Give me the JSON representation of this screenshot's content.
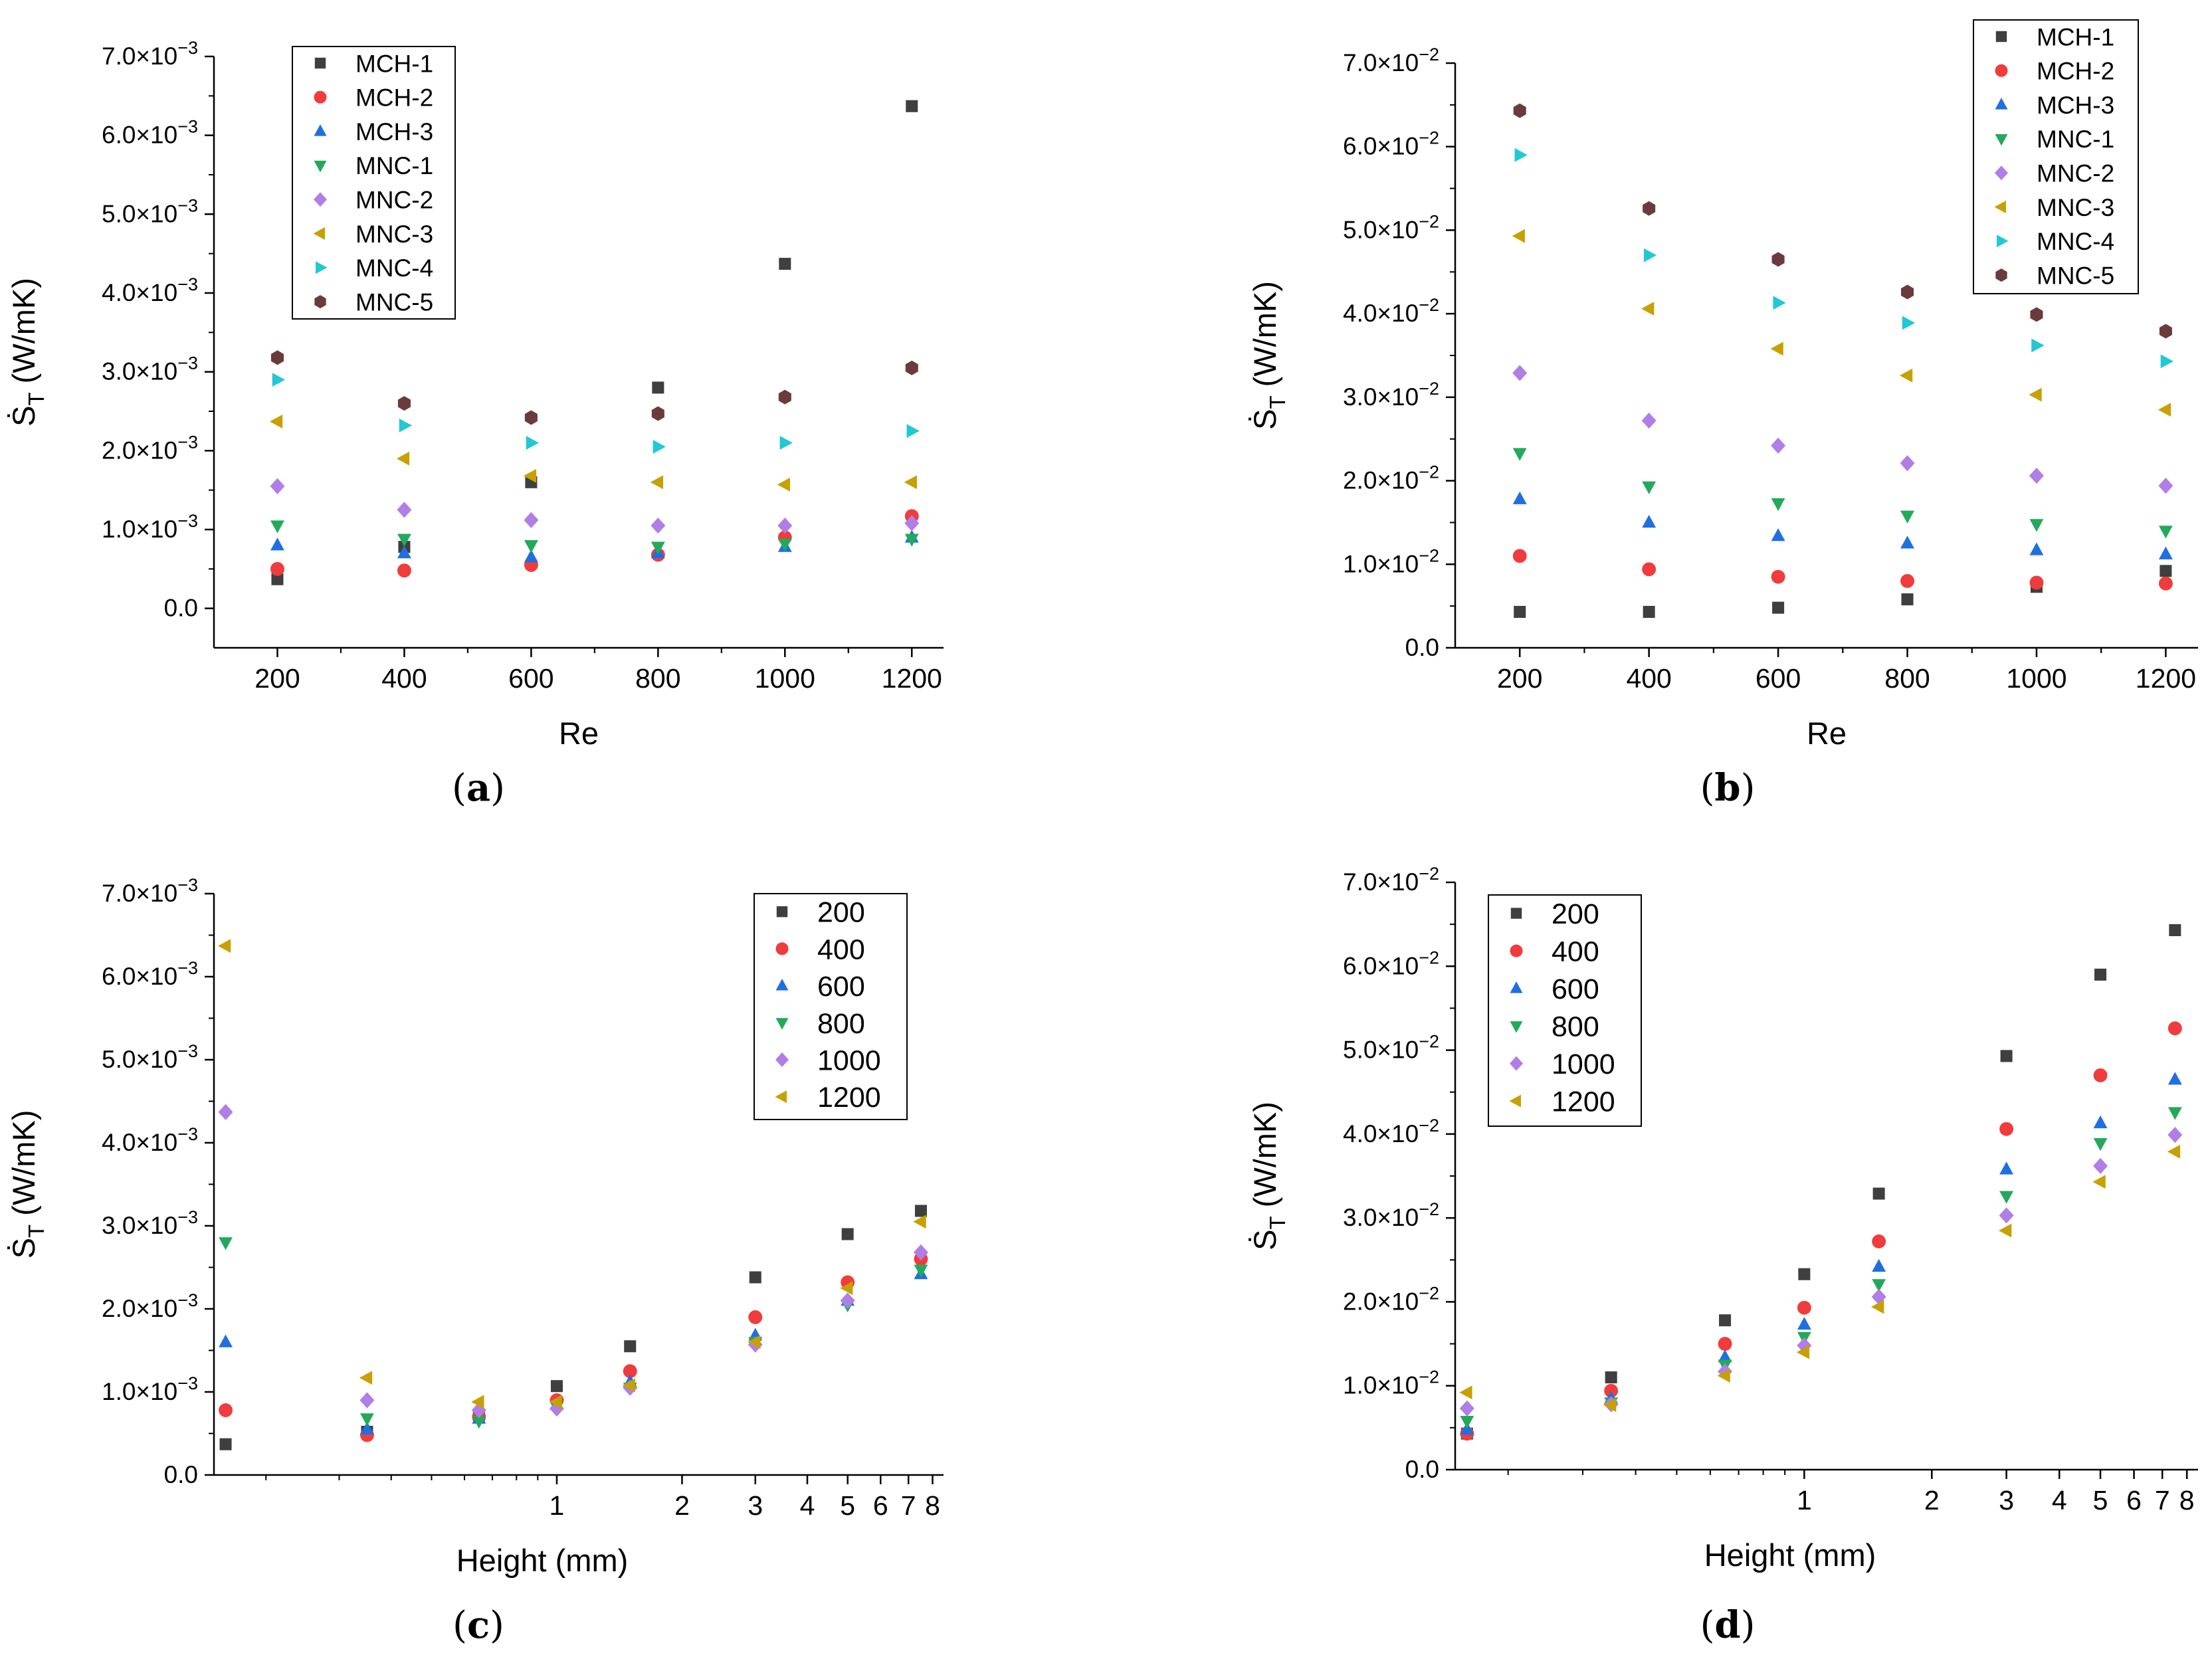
{
  "colors": {
    "MCH-1": "#3f3f3f",
    "MCH-2": "#f03c3c",
    "MCH-3": "#1f6fe0",
    "MNC-1": "#22aa5a",
    "MNC-2": "#b07ee6",
    "MNC-3": "#c8a000",
    "MNC-4": "#22c8d4",
    "MNC-5": "#6b3b3b",
    "200": "#3f3f3f",
    "400": "#f03c3c",
    "600": "#1f6fe0",
    "800": "#22aa5a",
    "1000": "#b07ee6",
    "1200": "#c8a000"
  },
  "chart_data": [
    {
      "id": "a",
      "caption": "(a)",
      "type": "scatter",
      "xlabel": "Re",
      "ylabel": "Ṡ",
      "ylabel_sub": "T",
      "ylabel_unit": "(W/mK)",
      "xscale": "linear",
      "xlim": [
        100,
        1250
      ],
      "ylim": [
        -0.0005,
        0.007
      ],
      "x_ticks": [
        {
          "v": 200,
          "label": "200"
        },
        {
          "v": 400,
          "label": "400"
        },
        {
          "v": 600,
          "label": "600"
        },
        {
          "v": 800,
          "label": "800"
        },
        {
          "v": 1000,
          "label": "1000"
        },
        {
          "v": 1200,
          "label": "1200"
        }
      ],
      "y_ticks": [
        {
          "v": 0,
          "m": "0.0",
          "e": ""
        },
        {
          "v": 0.001,
          "m": "1.0×10",
          "e": "−3"
        },
        {
          "v": 0.002,
          "m": "2.0×10",
          "e": "−3"
        },
        {
          "v": 0.003,
          "m": "3.0×10",
          "e": "−3"
        },
        {
          "v": 0.004,
          "m": "4.0×10",
          "e": "−3"
        },
        {
          "v": 0.005,
          "m": "5.0×10",
          "e": "−3"
        },
        {
          "v": 0.006,
          "m": "6.0×10",
          "e": "−3"
        },
        {
          "v": 0.007,
          "m": "7.0×10",
          "e": "−3"
        }
      ],
      "legend": "top-left",
      "x": [
        200,
        400,
        600,
        800,
        1000,
        1200
      ],
      "series": [
        {
          "name": "MCH-1",
          "marker": "square",
          "values": [
            0.00037,
            0.00078,
            0.0016,
            0.0028,
            0.00437,
            0.00637
          ]
        },
        {
          "name": "MCH-2",
          "marker": "circle",
          "values": [
            0.0005,
            0.00048,
            0.00055,
            0.00068,
            0.0009,
            0.00117
          ]
        },
        {
          "name": "MCH-3",
          "marker": "triangle-up",
          "values": [
            0.0008,
            0.0007,
            0.00065,
            0.0007,
            0.00078,
            0.0009
          ]
        },
        {
          "name": "MNC-1",
          "marker": "triangle-down",
          "values": [
            0.00105,
            0.00088,
            0.0008,
            0.00078,
            0.00082,
            0.00088
          ]
        },
        {
          "name": "MNC-2",
          "marker": "diamond",
          "values": [
            0.00155,
            0.00125,
            0.00112,
            0.00105,
            0.00105,
            0.00108
          ]
        },
        {
          "name": "MNC-3",
          "marker": "triangle-left",
          "values": [
            0.00237,
            0.0019,
            0.00168,
            0.0016,
            0.00157,
            0.0016
          ]
        },
        {
          "name": "MNC-4",
          "marker": "triangle-right",
          "values": [
            0.0029,
            0.00232,
            0.0021,
            0.00205,
            0.0021,
            0.00225
          ]
        },
        {
          "name": "MNC-5",
          "marker": "hexagon",
          "values": [
            0.00318,
            0.0026,
            0.00242,
            0.00247,
            0.00268,
            0.00305
          ]
        }
      ]
    },
    {
      "id": "b",
      "caption": "(b)",
      "type": "scatter",
      "xlabel": "Re",
      "ylabel": "Ṡ",
      "ylabel_sub": "T",
      "ylabel_unit": "(W/mK)",
      "xscale": "linear",
      "xlim": [
        100,
        1250
      ],
      "ylim": [
        0,
        0.07
      ],
      "x_ticks": [
        {
          "v": 200,
          "label": "200"
        },
        {
          "v": 400,
          "label": "400"
        },
        {
          "v": 600,
          "label": "600"
        },
        {
          "v": 800,
          "label": "800"
        },
        {
          "v": 1000,
          "label": "1000"
        },
        {
          "v": 1200,
          "label": "1200"
        }
      ],
      "y_ticks": [
        {
          "v": 0,
          "m": "0.0",
          "e": ""
        },
        {
          "v": 0.01,
          "m": "1.0×10",
          "e": "−2"
        },
        {
          "v": 0.02,
          "m": "2.0×10",
          "e": "−2"
        },
        {
          "v": 0.03,
          "m": "3.0×10",
          "e": "−2"
        },
        {
          "v": 0.04,
          "m": "4.0×10",
          "e": "−2"
        },
        {
          "v": 0.05,
          "m": "5.0×10",
          "e": "−2"
        },
        {
          "v": 0.06,
          "m": "6.0×10",
          "e": "−2"
        },
        {
          "v": 0.07,
          "m": "7.0×10",
          "e": "−2"
        }
      ],
      "legend": "top-right",
      "x": [
        200,
        400,
        600,
        800,
        1000,
        1200
      ],
      "series": [
        {
          "name": "MCH-1",
          "marker": "square",
          "values": [
            0.0043,
            0.0043,
            0.0048,
            0.0058,
            0.0073,
            0.0092
          ]
        },
        {
          "name": "MCH-2",
          "marker": "circle",
          "values": [
            0.011,
            0.0094,
            0.0085,
            0.008,
            0.0078,
            0.0077
          ]
        },
        {
          "name": "MCH-3",
          "marker": "triangle-up",
          "values": [
            0.0178,
            0.015,
            0.0134,
            0.0125,
            0.0117,
            0.0112
          ]
        },
        {
          "name": "MNC-1",
          "marker": "triangle-down",
          "values": [
            0.0233,
            0.0193,
            0.0173,
            0.0158,
            0.0148,
            0.014
          ]
        },
        {
          "name": "MNC-2",
          "marker": "diamond",
          "values": [
            0.0329,
            0.0272,
            0.0242,
            0.0221,
            0.0206,
            0.0194
          ]
        },
        {
          "name": "MNC-3",
          "marker": "triangle-left",
          "values": [
            0.0493,
            0.0406,
            0.0358,
            0.0326,
            0.0303,
            0.0285
          ]
        },
        {
          "name": "MNC-4",
          "marker": "triangle-right",
          "values": [
            0.059,
            0.047,
            0.0413,
            0.0389,
            0.0362,
            0.0343
          ]
        },
        {
          "name": "MNC-5",
          "marker": "hexagon",
          "values": [
            0.0643,
            0.0526,
            0.0465,
            0.0426,
            0.0399,
            0.0379
          ]
        }
      ]
    },
    {
      "id": "c",
      "caption": "(c)",
      "type": "scatter",
      "xlabel": "Height (mm)",
      "ylabel": "Ṡ",
      "ylabel_sub": "T",
      "ylabel_unit": "(W/mK)",
      "xscale": "log",
      "xlim": [
        0.15,
        8.5
      ],
      "ylim": [
        0,
        0.007
      ],
      "x_ticks": [
        {
          "v": 1,
          "label": "1"
        },
        {
          "v": 2,
          "label": "2"
        },
        {
          "v": 3,
          "label": "3"
        },
        {
          "v": 4,
          "label": "4"
        },
        {
          "v": 5,
          "label": "5"
        },
        {
          "v": 6,
          "label": "6"
        },
        {
          "v": 7,
          "label": "7"
        },
        {
          "v": 8,
          "label": "8"
        }
      ],
      "y_ticks": [
        {
          "v": 0,
          "m": "0.0",
          "e": ""
        },
        {
          "v": 0.001,
          "m": "1.0×10",
          "e": "−3"
        },
        {
          "v": 0.002,
          "m": "2.0×10",
          "e": "−3"
        },
        {
          "v": 0.003,
          "m": "3.0×10",
          "e": "−3"
        },
        {
          "v": 0.004,
          "m": "4.0×10",
          "e": "−3"
        },
        {
          "v": 0.005,
          "m": "5.0×10",
          "e": "−3"
        },
        {
          "v": 0.006,
          "m": "6.0×10",
          "e": "−3"
        },
        {
          "v": 0.007,
          "m": "7.0×10",
          "e": "−3"
        }
      ],
      "legend": "top-right",
      "x": [
        0.16,
        0.35,
        0.65,
        1,
        1.5,
        3,
        5,
        7.5
      ],
      "series": [
        {
          "name": "200",
          "marker": "square",
          "values": [
            0.00037,
            0.00052,
            0.00072,
            0.00107,
            0.00155,
            0.00238,
            0.0029,
            0.00318
          ]
        },
        {
          "name": "400",
          "marker": "circle",
          "values": [
            0.00078,
            0.00048,
            0.0007,
            0.0009,
            0.00125,
            0.0019,
            0.00232,
            0.0026
          ]
        },
        {
          "name": "600",
          "marker": "triangle-up",
          "values": [
            0.0016,
            0.00055,
            0.00068,
            0.00085,
            0.00112,
            0.00168,
            0.0021,
            0.00242
          ]
        },
        {
          "name": "800",
          "marker": "triangle-down",
          "values": [
            0.0028,
            0.00068,
            0.00065,
            0.00082,
            0.00105,
            0.0016,
            0.00205,
            0.00247
          ]
        },
        {
          "name": "1000",
          "marker": "diamond",
          "values": [
            0.00437,
            0.0009,
            0.00078,
            0.0008,
            0.00105,
            0.00157,
            0.0021,
            0.00268
          ]
        },
        {
          "name": "1200",
          "marker": "triangle-left",
          "values": [
            0.00637,
            0.00117,
            0.00088,
            0.00088,
            0.00108,
            0.0016,
            0.00225,
            0.00305
          ]
        }
      ]
    },
    {
      "id": "d",
      "caption": "(d)",
      "type": "scatter",
      "xlabel": "Height (mm)",
      "ylabel": "Ṡ",
      "ylabel_sub": "T",
      "ylabel_unit": "(W/mK)",
      "xscale": "log",
      "xlim": [
        0.15,
        8.5
      ],
      "ylim": [
        0,
        0.07
      ],
      "x_ticks": [
        {
          "v": 1,
          "label": "1"
        },
        {
          "v": 2,
          "label": "2"
        },
        {
          "v": 3,
          "label": "3"
        },
        {
          "v": 4,
          "label": "4"
        },
        {
          "v": 5,
          "label": "5"
        },
        {
          "v": 6,
          "label": "6"
        },
        {
          "v": 7,
          "label": "7"
        },
        {
          "v": 8,
          "label": "8"
        }
      ],
      "y_ticks": [
        {
          "v": 0,
          "m": "0.0",
          "e": ""
        },
        {
          "v": 0.01,
          "m": "1.0×10",
          "e": "−2"
        },
        {
          "v": 0.02,
          "m": "2.0×10",
          "e": "−2"
        },
        {
          "v": 0.03,
          "m": "3.0×10",
          "e": "−2"
        },
        {
          "v": 0.04,
          "m": "4.0×10",
          "e": "−2"
        },
        {
          "v": 0.05,
          "m": "5.0×10",
          "e": "−2"
        },
        {
          "v": 0.06,
          "m": "6.0×10",
          "e": "−2"
        },
        {
          "v": 0.07,
          "m": "7.0×10",
          "e": "−2"
        }
      ],
      "legend": "top-left",
      "x": [
        0.16,
        0.35,
        0.65,
        1,
        1.5,
        3,
        5,
        7.5
      ],
      "series": [
        {
          "name": "200",
          "marker": "square",
          "values": [
            0.0043,
            0.011,
            0.0178,
            0.0233,
            0.0329,
            0.0493,
            0.059,
            0.0643
          ]
        },
        {
          "name": "400",
          "marker": "circle",
          "values": [
            0.0043,
            0.0094,
            0.015,
            0.0193,
            0.0272,
            0.0406,
            0.047,
            0.0526
          ]
        },
        {
          "name": "600",
          "marker": "triangle-up",
          "values": [
            0.0048,
            0.0085,
            0.0134,
            0.0173,
            0.0242,
            0.0358,
            0.0413,
            0.0465
          ]
        },
        {
          "name": "800",
          "marker": "triangle-down",
          "values": [
            0.0058,
            0.008,
            0.0125,
            0.0158,
            0.0221,
            0.0326,
            0.0389,
            0.0426
          ]
        },
        {
          "name": "1000",
          "marker": "diamond",
          "values": [
            0.0073,
            0.0078,
            0.0117,
            0.0148,
            0.0206,
            0.0303,
            0.0362,
            0.0399
          ]
        },
        {
          "name": "1200",
          "marker": "triangle-left",
          "values": [
            0.0092,
            0.0077,
            0.0112,
            0.014,
            0.0194,
            0.0285,
            0.0343,
            0.0379
          ]
        }
      ]
    }
  ]
}
